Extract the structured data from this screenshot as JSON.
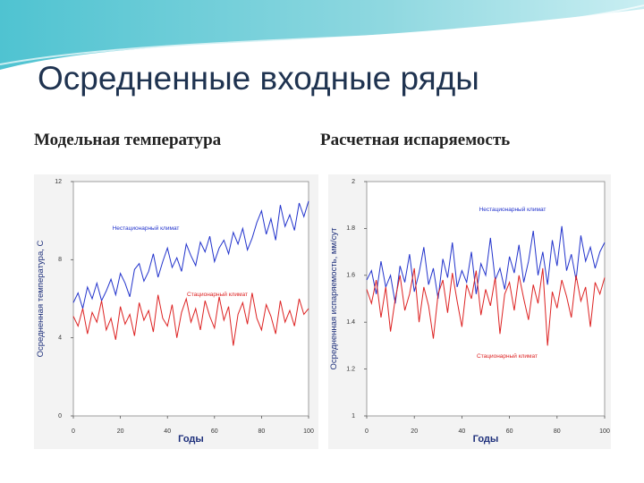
{
  "title": "Осредненные входные ряды",
  "chart_data": [
    {
      "type": "line",
      "title": "Модельная температура",
      "x_label": "Годы",
      "y_label": "Осредненная температура, С",
      "xlim": [
        0,
        100
      ],
      "xticks": [
        0,
        20,
        40,
        60,
        80,
        100
      ],
      "ylim": [
        0,
        12
      ],
      "yticks": [
        0,
        4,
        8,
        12
      ],
      "grid": false,
      "x": [
        0,
        2,
        4,
        6,
        8,
        10,
        12,
        14,
        16,
        18,
        20,
        22,
        24,
        26,
        28,
        30,
        32,
        34,
        36,
        38,
        40,
        42,
        44,
        46,
        48,
        50,
        52,
        54,
        56,
        58,
        60,
        62,
        64,
        66,
        68,
        70,
        72,
        74,
        76,
        78,
        80,
        82,
        84,
        86,
        88,
        90,
        92,
        94,
        96,
        98,
        100
      ],
      "series": [
        {
          "name": "Нестационарный климат",
          "color": "#2233cc",
          "values": [
            5.8,
            6.3,
            5.5,
            6.6,
            6.0,
            6.8,
            5.9,
            6.4,
            7.0,
            6.2,
            7.3,
            6.8,
            6.1,
            7.5,
            7.8,
            6.9,
            7.4,
            8.3,
            7.1,
            7.9,
            8.6,
            7.6,
            8.1,
            7.4,
            8.8,
            8.2,
            7.7,
            8.9,
            8.4,
            9.2,
            7.9,
            8.6,
            9.0,
            8.3,
            9.4,
            8.8,
            9.6,
            8.5,
            9.1,
            9.9,
            10.5,
            9.3,
            10.1,
            9.0,
            10.8,
            9.7,
            10.3,
            9.5,
            10.9,
            10.2,
            11.0
          ]
        },
        {
          "name": "Стационарный климат",
          "color": "#dd2222",
          "values": [
            5.1,
            4.6,
            5.5,
            4.2,
            5.3,
            4.8,
            5.9,
            4.4,
            5.0,
            3.9,
            5.6,
            4.7,
            5.2,
            4.1,
            5.8,
            4.9,
            5.4,
            4.3,
            6.2,
            5.0,
            4.6,
            5.7,
            4.0,
            5.3,
            6.0,
            4.8,
            5.5,
            4.4,
            5.9,
            5.1,
            4.5,
            6.1,
            4.9,
            5.6,
            3.6,
            5.2,
            5.8,
            4.7,
            6.3,
            5.0,
            4.4,
            5.7,
            5.1,
            4.2,
            5.9,
            4.8,
            5.4,
            4.6,
            6.0,
            5.2,
            5.5
          ]
        }
      ]
    },
    {
      "type": "line",
      "title": "Расчетная испаряемость",
      "x_label": "Годы",
      "y_label": "Осредненная испаряемость, мм/сут",
      "xlim": [
        0,
        100
      ],
      "xticks": [
        0,
        20,
        40,
        60,
        80,
        100
      ],
      "ylim": [
        1,
        2
      ],
      "yticks": [
        1,
        1.2,
        1.4,
        1.6,
        1.8,
        2
      ],
      "grid": false,
      "x": [
        0,
        2,
        4,
        6,
        8,
        10,
        12,
        14,
        16,
        18,
        20,
        22,
        24,
        26,
        28,
        30,
        32,
        34,
        36,
        38,
        40,
        42,
        44,
        46,
        48,
        50,
        52,
        54,
        56,
        58,
        60,
        62,
        64,
        66,
        68,
        70,
        72,
        74,
        76,
        78,
        80,
        82,
        84,
        86,
        88,
        90,
        92,
        94,
        96,
        98,
        100
      ],
      "series": [
        {
          "name": "Нестационарный климат",
          "color": "#2233cc",
          "values": [
            1.58,
            1.62,
            1.52,
            1.66,
            1.55,
            1.6,
            1.48,
            1.64,
            1.57,
            1.69,
            1.53,
            1.61,
            1.72,
            1.56,
            1.63,
            1.5,
            1.67,
            1.59,
            1.74,
            1.55,
            1.62,
            1.57,
            1.7,
            1.52,
            1.65,
            1.6,
            1.76,
            1.58,
            1.63,
            1.54,
            1.68,
            1.61,
            1.73,
            1.57,
            1.66,
            1.79,
            1.6,
            1.7,
            1.56,
            1.75,
            1.64,
            1.81,
            1.62,
            1.69,
            1.58,
            1.77,
            1.66,
            1.72,
            1.63,
            1.7,
            1.74
          ]
        },
        {
          "name": "Стационарный климат",
          "color": "#dd2222",
          "values": [
            1.54,
            1.48,
            1.58,
            1.42,
            1.55,
            1.36,
            1.5,
            1.6,
            1.45,
            1.52,
            1.63,
            1.4,
            1.55,
            1.47,
            1.33,
            1.52,
            1.58,
            1.44,
            1.61,
            1.49,
            1.38,
            1.56,
            1.5,
            1.62,
            1.43,
            1.54,
            1.47,
            1.59,
            1.35,
            1.52,
            1.57,
            1.45,
            1.6,
            1.5,
            1.41,
            1.56,
            1.48,
            1.63,
            1.3,
            1.53,
            1.46,
            1.58,
            1.51,
            1.42,
            1.6,
            1.49,
            1.55,
            1.38,
            1.57,
            1.52,
            1.59
          ]
        }
      ]
    }
  ]
}
